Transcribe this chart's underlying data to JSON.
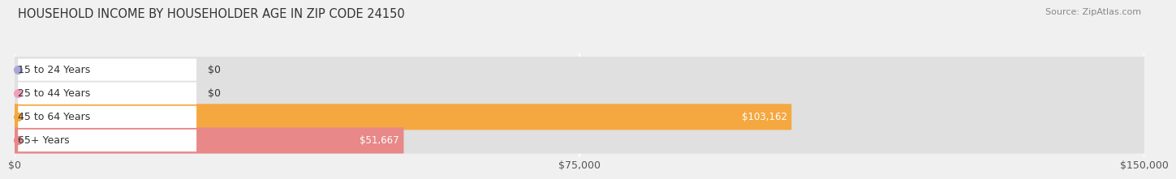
{
  "title": "HOUSEHOLD INCOME BY HOUSEHOLDER AGE IN ZIP CODE 24150",
  "source": "Source: ZipAtlas.com",
  "categories": [
    "15 to 24 Years",
    "25 to 44 Years",
    "45 to 64 Years",
    "65+ Years"
  ],
  "values": [
    0,
    0,
    103162,
    51667
  ],
  "bar_colors": [
    "#a8a8d8",
    "#f0a0b8",
    "#f5a840",
    "#e88888"
  ],
  "bar_labels": [
    "$0",
    "$0",
    "$103,162",
    "$51,667"
  ],
  "xlim": [
    0,
    150000
  ],
  "xticks": [
    0,
    75000,
    150000
  ],
  "xtick_labels": [
    "$0",
    "$75,000",
    "$150,000"
  ],
  "background_color": "#f0f0f0",
  "bar_background_color": "#e0e0e0",
  "bar_height": 0.6,
  "figsize": [
    14.06,
    2.33
  ]
}
